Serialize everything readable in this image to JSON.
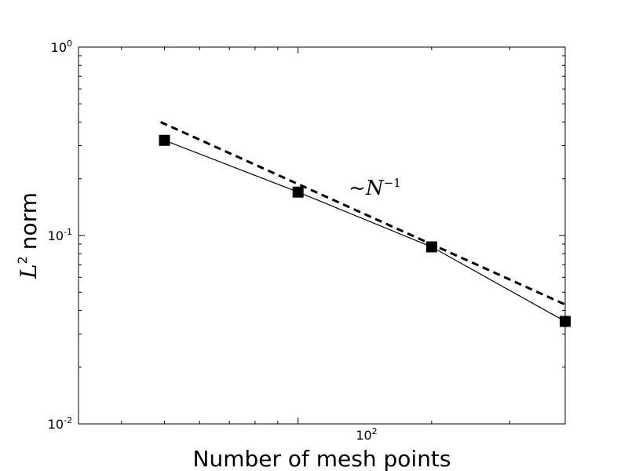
{
  "chart_data": {
    "type": "line",
    "title": "",
    "xlabel": "Number of mesh points",
    "ylabel": {
      "symbol": "L",
      "exponent": "2",
      "suffix": "norm"
    },
    "xscale": "log",
    "yscale": "log",
    "xlim": [
      32,
      400
    ],
    "ylim": [
      0.01,
      1
    ],
    "grid": false,
    "x_ticks": [
      {
        "value": 100,
        "base": "10",
        "exp": "2"
      }
    ],
    "y_ticks": [
      {
        "value": 1,
        "base": "10",
        "exp": "0"
      },
      {
        "value": 0.1,
        "base": "10",
        "exp": "-1"
      },
      {
        "value": 0.01,
        "base": "10",
        "exp": "-2"
      }
    ],
    "series": [
      {
        "values_x": [
          50,
          100,
          200,
          400
        ],
        "values_y": [
          0.32,
          0.17,
          0.087,
          0.035
        ],
        "style": "solid",
        "marker": "square",
        "color": "#000000"
      },
      {
        "values_x": [
          49,
          400
        ],
        "values_y": [
          0.4,
          0.043
        ],
        "style": "dashed",
        "marker": "none",
        "color": "#000000"
      }
    ],
    "annotation": {
      "prefix": "~",
      "symbol": "N",
      "exponent": "−1",
      "x": 130,
      "y": 0.165
    }
  }
}
